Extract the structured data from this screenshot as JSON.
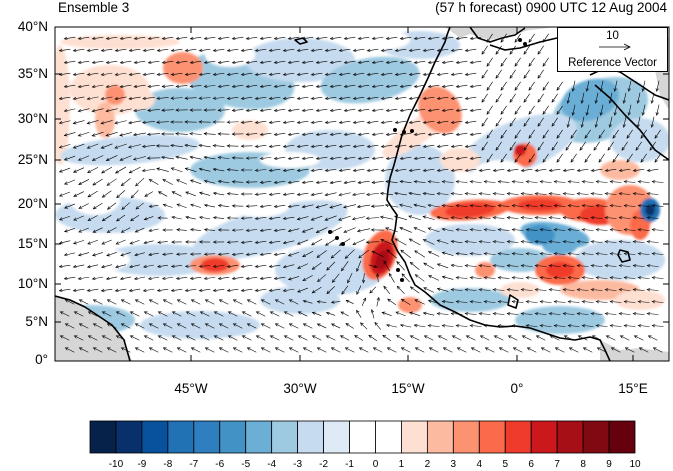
{
  "header": {
    "left_title": "Ensemble 3",
    "right_title": "(57 h forecast) 0900 UTC 12 Aug 2004"
  },
  "map": {
    "lat_labels": [
      "40°N",
      "35°N",
      "30°N",
      "25°N",
      "20°N",
      "15°N",
      "10°N",
      "5°N",
      "0°"
    ],
    "lon_labels": [
      "45°W",
      "30°W",
      "15°W",
      "0°",
      "15°E"
    ],
    "colors": {
      "land_gray": "#d6d6d6",
      "coast": "#000000",
      "arrow": "#000000"
    }
  },
  "reference_vector": {
    "magnitude": "10",
    "title": "Reference Vector"
  },
  "colorbar": {
    "labels": [
      "-10",
      "-9",
      "-8",
      "-7",
      "-6",
      "-5",
      "-4",
      "-3",
      "-2",
      "-1",
      "0",
      "1",
      "2",
      "3",
      "4",
      "5",
      "6",
      "7",
      "8",
      "9",
      "10"
    ],
    "colors": [
      "#06214a",
      "#08306b",
      "#08519c",
      "#2171b5",
      "#2f7ec0",
      "#4292c6",
      "#6baed6",
      "#9ecae1",
      "#c6dbef",
      "#deebf7",
      "#ffffff",
      "#ffffff",
      "#fee0d2",
      "#fcbba1",
      "#fc9272",
      "#fb6a4a",
      "#ef3b2c",
      "#cb181d",
      "#a50f15",
      "#7f0a12",
      "#67000d"
    ]
  }
}
